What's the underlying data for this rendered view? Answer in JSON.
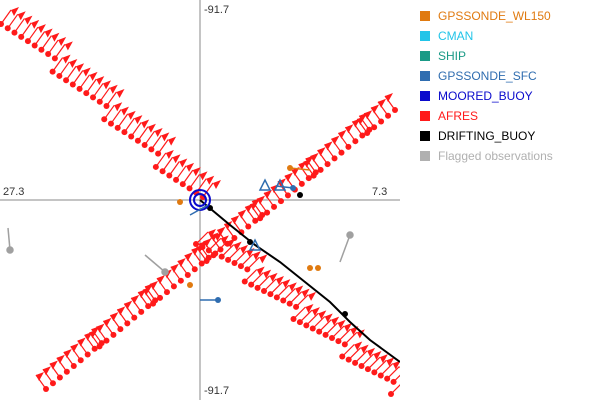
{
  "map": {
    "label_top": "-91.7",
    "label_bottom": "-91.7",
    "label_left": "27.3",
    "label_right": "7.3"
  },
  "legend": {
    "items": [
      {
        "label": "GPSSONDE_WL150",
        "color": "#e07a10"
      },
      {
        "label": "CMAN",
        "color": "#22c4e8"
      },
      {
        "label": "SHIP",
        "color": "#1a9a86"
      },
      {
        "label": "GPSSONDE_SFC",
        "color": "#2f6db0"
      },
      {
        "label": "MOORED_BUOY",
        "color": "#0a0acc"
      },
      {
        "label": "AFRES",
        "color": "#ff1a1a"
      },
      {
        "label": "DRIFTING_BUOY",
        "color": "#000000"
      },
      {
        "label": "Flagged observations",
        "color": "#b0b0b0"
      }
    ]
  }
}
